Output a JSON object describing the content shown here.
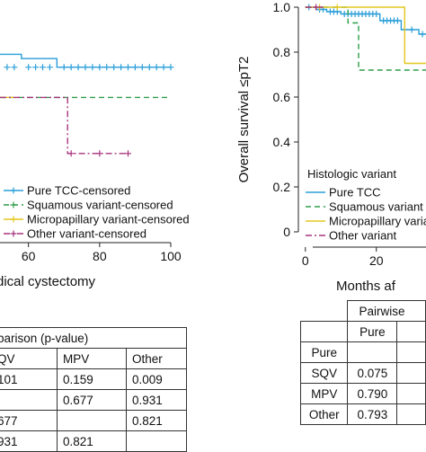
{
  "chart_data": [
    {
      "type": "line",
      "subtype": "kaplan-meier",
      "xlabel": "dical cystectomy",
      "xticks": [
        60,
        80,
        100
      ],
      "xlim": [
        52,
        100
      ],
      "ylim": [
        0.37,
        0.92
      ],
      "series": [
        {
          "name": "Pure TCC-censored",
          "color": "#2b9fd9",
          "dash": "",
          "points": [
            [
              52,
              0.86
            ],
            [
              58,
              0.86
            ],
            [
              58,
              0.84
            ],
            [
              68,
              0.84
            ],
            [
              68,
              0.8
            ],
            [
              100,
              0.8
            ]
          ],
          "censors": [
            54,
            56,
            60,
            62,
            64,
            66,
            70,
            72,
            74,
            76,
            78,
            80,
            82,
            84,
            86,
            88,
            90,
            92,
            94,
            96,
            98,
            100
          ],
          "censor_y": 0.8
        },
        {
          "name": "Squamous variant-censored",
          "color": "#2e9e4a",
          "dash": "6,4",
          "points": [
            [
              52,
              0.66
            ],
            [
              100,
              0.66
            ]
          ],
          "censors": [],
          "censor_y": 0.66
        },
        {
          "name": "Micropapillary variant-censored",
          "color": "#e3c720",
          "dash": "",
          "points": [
            [
              52,
              0.66
            ],
            [
              56,
              0.66
            ]
          ],
          "censors": [],
          "censor_y": 0.66
        },
        {
          "name": "Other variant-censored",
          "color": "#a8337e",
          "dash": "7,3,2,3",
          "points": [
            [
              52,
              0.66
            ],
            [
              71,
              0.66
            ],
            [
              71,
              0.4
            ],
            [
              88,
              0.4
            ]
          ],
          "censors": [
            72,
            80,
            88
          ],
          "censor_y": 0.4
        }
      ],
      "grid": false,
      "legend_position": "bottom-left",
      "table": {
        "title": "parison (p-value)",
        "headers": [
          "QV",
          "MPV",
          "Other"
        ],
        "rows": [
          [
            "101",
            "0.159",
            "0.009"
          ],
          [
            "",
            "0.677",
            "0.931"
          ],
          [
            "677",
            "",
            "0.821"
          ],
          [
            "931",
            "0.821",
            ""
          ]
        ]
      }
    },
    {
      "type": "line",
      "subtype": "kaplan-meier",
      "xlabel": "Months af",
      "ylabel": "Overall survival ≤pT2",
      "xticks": [
        0,
        20
      ],
      "yticks": [
        "0",
        "0.2",
        "0.4",
        "0.6",
        "0.8",
        "1.0"
      ],
      "xlim": [
        -4,
        34
      ],
      "ylim": [
        0,
        1.0
      ],
      "series": [
        {
          "name": "Pure TCC",
          "color": "#2b9fd9",
          "dash": "",
          "points": [
            [
              0,
              1.0
            ],
            [
              3,
              1.0
            ],
            [
              3,
              0.99
            ],
            [
              6,
              0.99
            ],
            [
              6,
              0.98
            ],
            [
              10,
              0.98
            ],
            [
              10,
              0.97
            ],
            [
              21,
              0.97
            ],
            [
              21,
              0.94
            ],
            [
              27,
              0.94
            ],
            [
              27,
              0.9
            ],
            [
              32,
              0.9
            ],
            [
              32,
              0.88
            ],
            [
              34,
              0.88
            ]
          ],
          "censors": [
            1,
            4,
            5,
            7,
            8,
            9,
            11,
            12,
            13,
            14,
            15,
            16,
            17,
            18,
            19,
            20,
            22,
            23,
            24,
            25,
            26,
            28,
            30,
            33
          ],
          "censor_y": null
        },
        {
          "name": "Squamous variant",
          "color": "#2e9e4a",
          "dash": "6,4",
          "points": [
            [
              0,
              1.0
            ],
            [
              12,
              1.0
            ],
            [
              12,
              0.93
            ],
            [
              15,
              0.93
            ],
            [
              15,
              0.72
            ],
            [
              34,
              0.72
            ]
          ],
          "censors": [],
          "censor_y": null
        },
        {
          "name": "Micropapillary variant",
          "color": "#e3c720",
          "dash": "",
          "points": [
            [
              0,
              1.0
            ],
            [
              28,
              1.0
            ],
            [
              28,
              0.75
            ],
            [
              34,
              0.75
            ]
          ],
          "censors": [
            4,
            9
          ],
          "censor_y": 1.0
        },
        {
          "name": "Other variant",
          "color": "#a8337e",
          "dash": "7,3,2,3",
          "points": [
            [
              0,
              1.0
            ],
            [
              5,
              1.0
            ]
          ],
          "censors": [
            3
          ],
          "censor_y": 1.0
        }
      ],
      "grid": false,
      "legend_title": "Histologic variant",
      "legend_position": "bottom-left",
      "table": {
        "title": "Pairwise",
        "headers": [
          "Pure"
        ],
        "rows": [
          [
            "Pure",
            ""
          ],
          [
            "SQV",
            "0.075"
          ],
          [
            "MPV",
            "0.790"
          ],
          [
            "Other",
            "0.793"
          ]
        ]
      }
    }
  ]
}
